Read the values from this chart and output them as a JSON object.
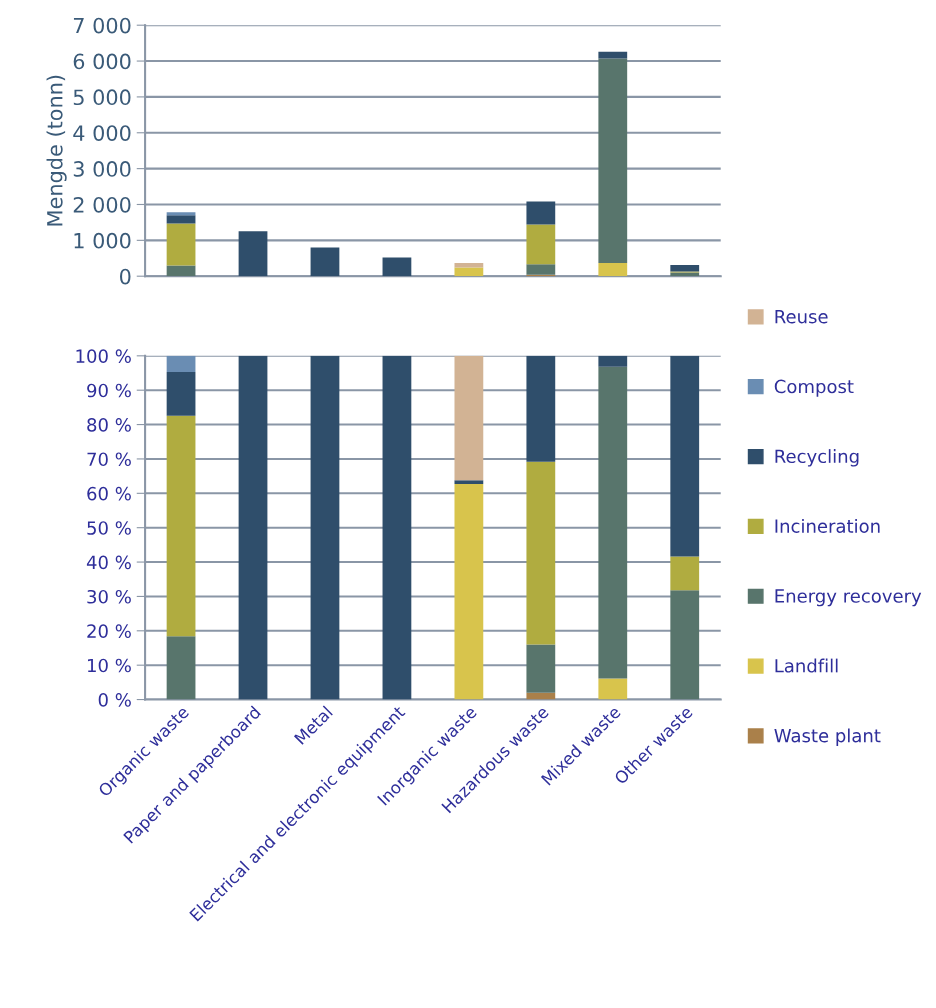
{
  "chart_data": [
    {
      "type": "bar",
      "stacked": true,
      "ylabel": "Mengde (tonn)",
      "categories": [
        null,
        null,
        null,
        null,
        null,
        null,
        null,
        null
      ],
      "tick_labels": "y",
      "grid": "y",
      "legend": false,
      "ylim": [
        0,
        7000
      ],
      "yticks": [
        {
          "value": 0,
          "label": "0"
        },
        {
          "value": 1000,
          "label": "1 000"
        },
        {
          "value": 2000,
          "label": "2 000"
        },
        {
          "value": 3000,
          "label": "3 000"
        },
        {
          "value": 4000,
          "label": "4 000"
        },
        {
          "value": 5000,
          "label": "5 000"
        },
        {
          "value": 6000,
          "label": "6 000"
        },
        {
          "value": 7000,
          "label": "7 000"
        }
      ],
      "series": [
        {
          "color": "#aa804a",
          "values": [
            0,
            0,
            0,
            0,
            0,
            40,
            0,
            0
          ]
        },
        {
          "color": "#d8c44c",
          "values": [
            0,
            0,
            0,
            0,
            240,
            0,
            370,
            0
          ]
        },
        {
          "color": "#58756c",
          "values": [
            300,
            0,
            0,
            0,
            0,
            290,
            5700,
            100
          ]
        },
        {
          "color": "#b0ac40",
          "values": [
            1170,
            0,
            0,
            0,
            0,
            1110,
            0,
            30
          ]
        },
        {
          "color": "#2f4e6b",
          "values": [
            230,
            1250,
            800,
            520,
            null,
            640,
            190,
            180
          ]
        },
        {
          "color": "#6a8db3",
          "values": [
            80,
            0,
            0,
            0,
            0,
            0,
            0,
            0
          ]
        },
        {
          "color": "#d2b394",
          "values": [
            0,
            0,
            0,
            0,
            130,
            0,
            0,
            0
          ]
        }
      ]
    },
    {
      "type": "bar",
      "stacked": true,
      "categories": [
        "Organic waste",
        "Paper and paperboard",
        "Metal",
        "Electrical and electronic equipment",
        "Inorganic waste",
        "Hazardous waste",
        "Mixed waste",
        "Other waste"
      ],
      "grid": "y",
      "legend": "right",
      "ylim": [
        0,
        100
      ],
      "yticks": [
        {
          "value": 0,
          "label": "0 %"
        },
        {
          "value": 10,
          "label": "10 %"
        },
        {
          "value": 20,
          "label": "20 %"
        },
        {
          "value": 30,
          "label": "30 %"
        },
        {
          "value": 40,
          "label": "40 %"
        },
        {
          "value": 50,
          "label": "50 %"
        },
        {
          "value": 60,
          "label": "60 %"
        },
        {
          "value": 70,
          "label": "70 %"
        },
        {
          "value": 80,
          "label": "80 %"
        },
        {
          "value": 90,
          "label": "90 %"
        },
        {
          "value": 100,
          "label": "100 %"
        }
      ],
      "series": [
        {
          "name": "Waste plant",
          "color": "#aa804a",
          "values": [
            0,
            0,
            0,
            0,
            0,
            2.0,
            0,
            0
          ]
        },
        {
          "name": "Landfill",
          "color": "#d8c44c",
          "values": [
            0,
            0,
            0,
            0,
            62.7,
            0,
            6.1,
            0
          ]
        },
        {
          "name": "Energy recovery",
          "color": "#58756c",
          "values": [
            18.4,
            0,
            0,
            0,
            0,
            14.0,
            90.7,
            31.8
          ]
        },
        {
          "name": "Incineration",
          "color": "#b0ac40",
          "values": [
            64.2,
            0,
            0,
            0,
            0,
            53.2,
            0,
            9.8
          ]
        },
        {
          "name": "Recycling",
          "color": "#2f4e6b",
          "values": [
            12.7,
            100,
            100,
            100,
            1.1,
            30.8,
            3.2,
            58.4
          ]
        },
        {
          "name": "Compost",
          "color": "#6a8db3",
          "values": [
            4.7,
            0,
            0,
            0,
            0,
            0,
            0,
            0
          ]
        },
        {
          "name": "Reuse",
          "color": "#d2b394",
          "values": [
            0,
            0,
            0,
            0,
            36.2,
            0,
            0,
            0
          ]
        }
      ]
    }
  ]
}
